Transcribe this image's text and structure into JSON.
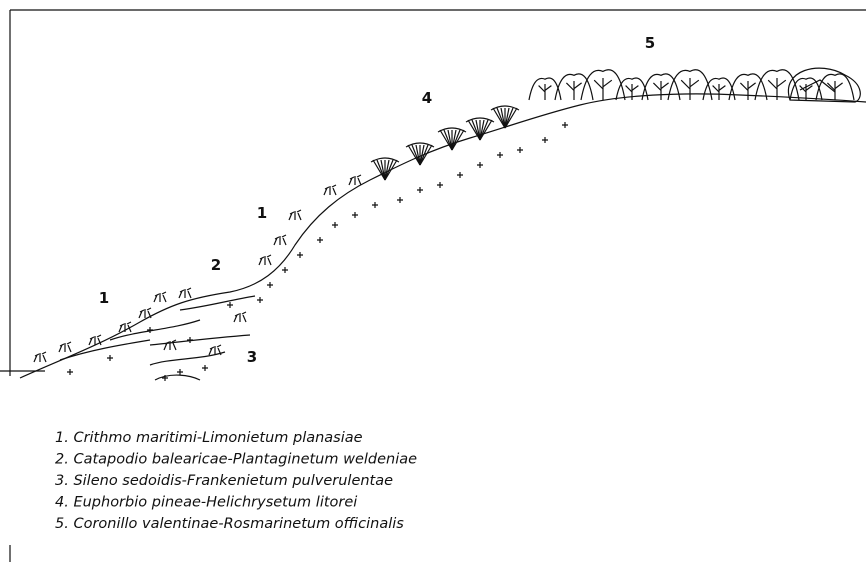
{
  "zone_labels": [
    "5",
    "4",
    "1",
    "2",
    "1",
    "3"
  ],
  "legend": [
    "1. Crithmo maritimi-Limonietum planasiae",
    "2. Catapodio balearicae-Plantaginetum weldeniae",
    "3. Sileno sedoidis-Frankenietum pulverulentae",
    "4. Euphorbio pineae-Helichrysetum litorei",
    "5. Coronillo valentinae-Rosmarinetum officinalis"
  ]
}
